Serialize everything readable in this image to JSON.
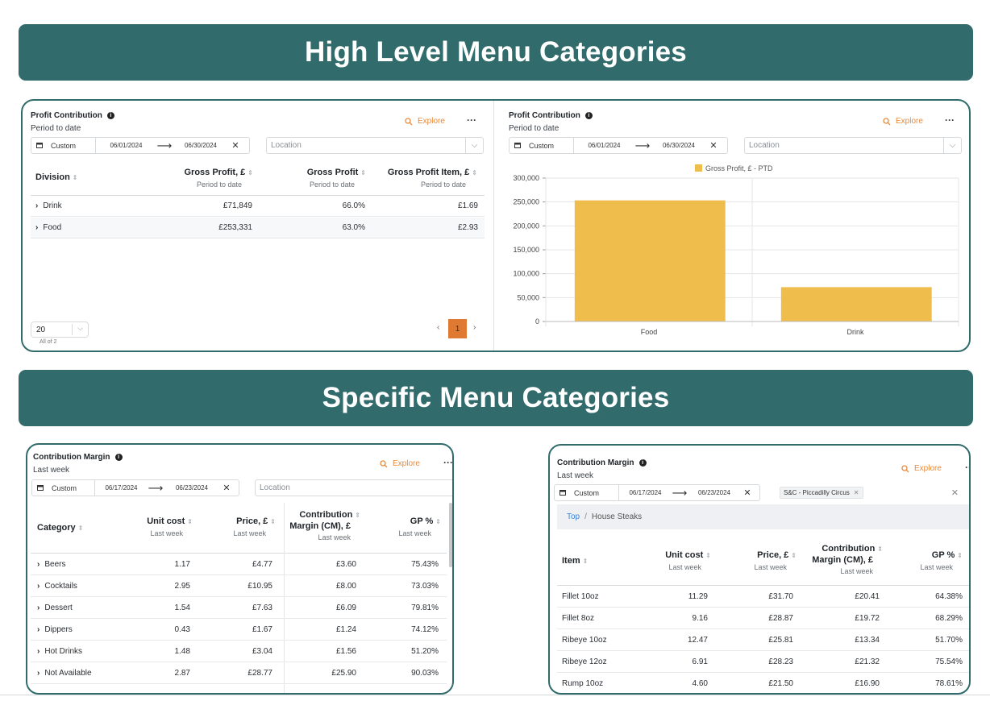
{
  "banners": {
    "high_level": "High Level Menu Categories",
    "specific": "Specific Menu Categories"
  },
  "common": {
    "explore_label": "Explore",
    "more_label": "···",
    "custom_label": "Custom",
    "location_placeholder": "Location",
    "info_glyph": "i"
  },
  "card1": {
    "title": "Profit Contribution",
    "subtitle": "Period to date",
    "date_from": "06/01/2024",
    "date_to": "06/30/2024",
    "columns": [
      {
        "label": "Division",
        "sub": ""
      },
      {
        "label": "Gross Profit, £",
        "sub": "Period to date"
      },
      {
        "label": "Gross Profit",
        "sub": "Period to date"
      },
      {
        "label": "Gross Profit Item, £",
        "sub": "Period to date"
      }
    ],
    "rows": [
      {
        "name": "Drink",
        "gp": "£71,849",
        "gpp": "66.0%",
        "gpi": "£1.69"
      },
      {
        "name": "Food",
        "gp": "£253,331",
        "gpp": "63.0%",
        "gpi": "£2.93"
      }
    ],
    "page_size": "20",
    "all_of": "All of 2",
    "current_page": "1",
    "prev": "‹",
    "next": "›"
  },
  "card2": {
    "title": "Profit Contribution",
    "subtitle": "Period to date",
    "date_from": "06/01/2024",
    "date_to": "06/30/2024"
  },
  "chart_data": {
    "type": "bar",
    "categories": [
      "Food",
      "Drink"
    ],
    "series": [
      {
        "name": "Gross Profit, £ - PTD",
        "values": [
          253331,
          71849
        ],
        "color": "#efbd4c"
      }
    ],
    "yticks": [
      "300,000",
      "250,000",
      "200,000",
      "150,000",
      "100,000",
      "50,000",
      "0"
    ],
    "ylim": [
      0,
      300000
    ],
    "grid": true,
    "legend": "top-center"
  },
  "card3": {
    "title": "Contribution Margin",
    "subtitle": "Last week",
    "date_from": "06/17/2024",
    "date_to": "06/23/2024",
    "columns": [
      {
        "label": "Category",
        "sub": ""
      },
      {
        "label": "Unit cost",
        "sub": "Last week"
      },
      {
        "label": "Price, £",
        "sub": "Last week"
      },
      {
        "label": "Contribution",
        "label2": "Margin (CM), £",
        "sub": "Last week"
      },
      {
        "label": "GP %",
        "sub": "Last week"
      }
    ],
    "rows": [
      {
        "name": "Beers",
        "uc": "1.17",
        "price": "£4.77",
        "cm": "£3.60",
        "gp": "75.43%"
      },
      {
        "name": "Cocktails",
        "uc": "2.95",
        "price": "£10.95",
        "cm": "£8.00",
        "gp": "73.03%"
      },
      {
        "name": "Dessert",
        "uc": "1.54",
        "price": "£7.63",
        "cm": "£6.09",
        "gp": "79.81%"
      },
      {
        "name": "Dippers",
        "uc": "0.43",
        "price": "£1.67",
        "cm": "£1.24",
        "gp": "74.12%"
      },
      {
        "name": "Hot Drinks",
        "uc": "1.48",
        "price": "£3.04",
        "cm": "£1.56",
        "gp": "51.20%"
      },
      {
        "name": "Not Available",
        "uc": "2.87",
        "price": "£28.77",
        "cm": "£25.90",
        "gp": "90.03%"
      }
    ]
  },
  "card4": {
    "title": "Contribution Margin",
    "subtitle": "Last week",
    "date_from": "06/17/2024",
    "date_to": "06/23/2024",
    "location_tag": "S&C - Piccadilly Circus",
    "breadcrumb_top": "Top",
    "breadcrumb_sep": "/",
    "breadcrumb_current": "House Steaks",
    "columns": [
      {
        "label": "Item",
        "sub": ""
      },
      {
        "label": "Unit cost",
        "sub": "Last week"
      },
      {
        "label": "Price, £",
        "sub": "Last week"
      },
      {
        "label": "Contribution",
        "label2": "Margin (CM), £",
        "sub": "Last week"
      },
      {
        "label": "GP %",
        "sub": "Last week"
      }
    ],
    "rows": [
      {
        "name": "Fillet 10oz",
        "uc": "11.29",
        "price": "£31.70",
        "cm": "£20.41",
        "gp": "64.38%"
      },
      {
        "name": "Fillet 8oz",
        "uc": "9.16",
        "price": "£28.87",
        "cm": "£19.72",
        "gp": "68.29%"
      },
      {
        "name": "Ribeye 10oz",
        "uc": "12.47",
        "price": "£25.81",
        "cm": "£13.34",
        "gp": "51.70%"
      },
      {
        "name": "Ribeye 12oz",
        "uc": "6.91",
        "price": "£28.23",
        "cm": "£21.32",
        "gp": "75.54%"
      },
      {
        "name": "Rump 10oz",
        "uc": "4.60",
        "price": "£21.50",
        "cm": "£16.90",
        "gp": "78.61%"
      }
    ]
  }
}
